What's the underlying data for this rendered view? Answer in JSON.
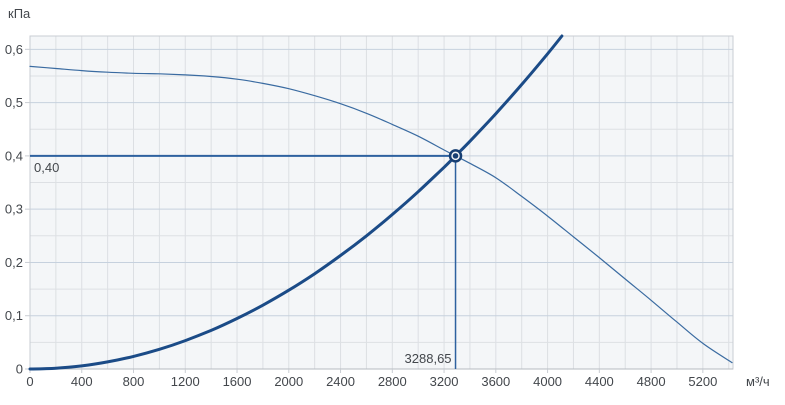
{
  "chart_data": {
    "type": "line",
    "title": "",
    "ylabel": "кПа",
    "xlabel": "м³/ч",
    "xlim": [
      0,
      5433
    ],
    "ylim": [
      0,
      0.625
    ],
    "x_ticks": {
      "values": [
        0,
        400,
        800,
        1200,
        1600,
        2000,
        2400,
        2800,
        3200,
        3600,
        4000,
        4400,
        4800,
        5200
      ],
      "labels": [
        "0",
        "400",
        "800",
        "1200",
        "1600",
        "2000",
        "2400",
        "2800",
        "3200",
        "3600",
        "4000",
        "4400",
        "4800",
        "5200"
      ]
    },
    "y_ticks": {
      "values": [
        0,
        0.1,
        0.2,
        0.3,
        0.4,
        0.5,
        0.6
      ],
      "labels": [
        "0",
        "0,1",
        "0,2",
        "0,3",
        "0,4",
        "0,5",
        "0,6"
      ]
    },
    "grid": {
      "x_minor_step": 200,
      "y_minor_step": 0.05,
      "y_major_step": 0.1
    },
    "series": [
      {
        "name": "fan-pressure-curve",
        "color": "#3a6ba1",
        "width": 1.2,
        "points": [
          [
            0,
            0.568
          ],
          [
            200,
            0.564
          ],
          [
            400,
            0.56
          ],
          [
            600,
            0.557
          ],
          [
            800,
            0.555
          ],
          [
            1000,
            0.554
          ],
          [
            1200,
            0.552
          ],
          [
            1400,
            0.549
          ],
          [
            1600,
            0.544
          ],
          [
            1800,
            0.536
          ],
          [
            2000,
            0.526
          ],
          [
            2200,
            0.513
          ],
          [
            2400,
            0.498
          ],
          [
            2600,
            0.48
          ],
          [
            2800,
            0.459
          ],
          [
            3000,
            0.437
          ],
          [
            3200,
            0.411
          ],
          [
            3288.65,
            0.4
          ],
          [
            3400,
            0.386
          ],
          [
            3600,
            0.359
          ],
          [
            3800,
            0.324
          ],
          [
            4000,
            0.287
          ],
          [
            4200,
            0.248
          ],
          [
            4400,
            0.209
          ],
          [
            4600,
            0.169
          ],
          [
            4800,
            0.129
          ],
          [
            5000,
            0.088
          ],
          [
            5200,
            0.048
          ],
          [
            5425,
            0.012
          ]
        ]
      },
      {
        "name": "system-resistance-curve",
        "color": "#1b4b87",
        "width": 3,
        "points": [
          [
            0,
            0
          ],
          [
            200,
            0.0015
          ],
          [
            400,
            0.0059
          ],
          [
            600,
            0.0133
          ],
          [
            800,
            0.0237
          ],
          [
            1000,
            0.037
          ],
          [
            1200,
            0.0533
          ],
          [
            1400,
            0.0725
          ],
          [
            1600,
            0.0947
          ],
          [
            1800,
            0.1198
          ],
          [
            2000,
            0.1479
          ],
          [
            2200,
            0.1789
          ],
          [
            2400,
            0.213
          ],
          [
            2600,
            0.2499
          ],
          [
            2800,
            0.2899
          ],
          [
            3000,
            0.3328
          ],
          [
            3200,
            0.3786
          ],
          [
            3288.65,
            0.4
          ],
          [
            3400,
            0.4274
          ],
          [
            3600,
            0.4792
          ],
          [
            3800,
            0.5339
          ],
          [
            4000,
            0.5916
          ],
          [
            4111,
            0.625
          ]
        ]
      }
    ],
    "operating_point": {
      "x": 3288.65,
      "y": 0.4,
      "x_label": "3288,65",
      "y_label": "0,40"
    },
    "colors": {
      "plot_bg": "#f4f6f8",
      "grid_vertical": "#dcdfe3",
      "grid_minor_h": "#dde0e4",
      "grid_major_h": "#c6d1de",
      "border": "#c9cdd3",
      "axis": "#b6bbc1",
      "guide": "#2e619f",
      "marker": "#163e72",
      "text": "#43474c"
    }
  }
}
